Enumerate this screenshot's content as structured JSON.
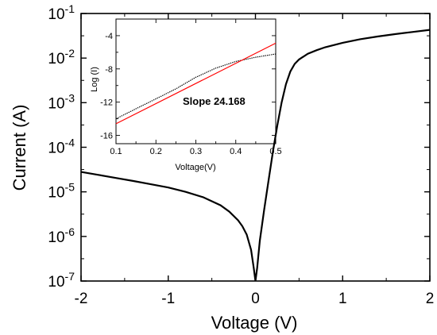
{
  "chart_data": [
    {
      "type": "line",
      "xlabel": "Voltage (V)",
      "ylabel": "Current (A)",
      "xlim": [
        -2,
        2
      ],
      "ylim_log10": [
        -7,
        -1
      ],
      "y_scale": "log",
      "grid": false,
      "x_ticks": [
        {
          "value": -2,
          "label": "-2"
        },
        {
          "value": -1,
          "label": "-1"
        },
        {
          "value": 0,
          "label": "0"
        },
        {
          "value": 1,
          "label": "1"
        },
        {
          "value": 2,
          "label": "2"
        }
      ],
      "y_ticks": [
        {
          "exp": -7,
          "base": "10",
          "sup": "-7"
        },
        {
          "exp": -6,
          "base": "10",
          "sup": "-6"
        },
        {
          "exp": -5,
          "base": "10",
          "sup": "-5"
        },
        {
          "exp": -4,
          "base": "10",
          "sup": "-4"
        },
        {
          "exp": -3,
          "base": "10",
          "sup": "-3"
        },
        {
          "exp": -2,
          "base": "10",
          "sup": "-2"
        },
        {
          "exp": -1,
          "base": "10",
          "sup": "-1"
        }
      ],
      "series": [
        {
          "color": "#000000",
          "x": [
            -2.0,
            -1.8,
            -1.6,
            -1.4,
            -1.2,
            -1.0,
            -0.8,
            -0.6,
            -0.4,
            -0.3,
            -0.2,
            -0.15,
            -0.1,
            -0.05,
            -0.02,
            0.0,
            0.02,
            0.05,
            0.1,
            0.15,
            0.2,
            0.25,
            0.3,
            0.35,
            0.4,
            0.45,
            0.5,
            0.6,
            0.7,
            0.8,
            1.0,
            1.2,
            1.4,
            1.6,
            1.8,
            2.0
          ],
          "y": [
            2.8e-05,
            2.4e-05,
            2.05e-05,
            1.75e-05,
            1.48e-05,
            1.25e-05,
            1e-05,
            7.6e-06,
            5e-06,
            3.6e-06,
            2.3e-06,
            1.7e-06,
            1.1e-06,
            5e-07,
            2e-07,
            1e-07,
            2e-07,
            8e-07,
            4e-06,
            1.8e-05,
            8e-05,
            0.0003,
            0.001,
            0.0026,
            0.005,
            0.0074,
            0.0093,
            0.0125,
            0.015,
            0.0175,
            0.022,
            0.0265,
            0.0305,
            0.0345,
            0.0385,
            0.043
          ]
        }
      ]
    },
    {
      "type": "line",
      "xlabel": "Voltage(V)",
      "ylabel": "Log (I)",
      "xlim": [
        0.1,
        0.5
      ],
      "ylim": [
        -17,
        -2
      ],
      "grid": false,
      "x_ticks": [
        "0.1",
        "0.2",
        "0.3",
        "0.4",
        "0.5"
      ],
      "x_tick_values": [
        0.1,
        0.2,
        0.3,
        0.4,
        0.5
      ],
      "y_ticks": [
        "-4",
        "-8",
        "-12",
        "-16"
      ],
      "y_tick_values": [
        -4,
        -8,
        -12,
        -16
      ],
      "annotation": "Slope 24.168",
      "series": [
        {
          "color": "#000000",
          "style": "dotted",
          "x": [
            0.1,
            0.15,
            0.2,
            0.25,
            0.3,
            0.35,
            0.4,
            0.45,
            0.5
          ],
          "y": [
            -14.0,
            -12.8,
            -11.6,
            -10.4,
            -9.0,
            -7.9,
            -7.1,
            -6.6,
            -6.2
          ]
        },
        {
          "color": "#ff0000",
          "style": "solid",
          "x": [
            0.1,
            0.5
          ],
          "y": [
            -14.6,
            -4.9
          ]
        }
      ]
    }
  ]
}
